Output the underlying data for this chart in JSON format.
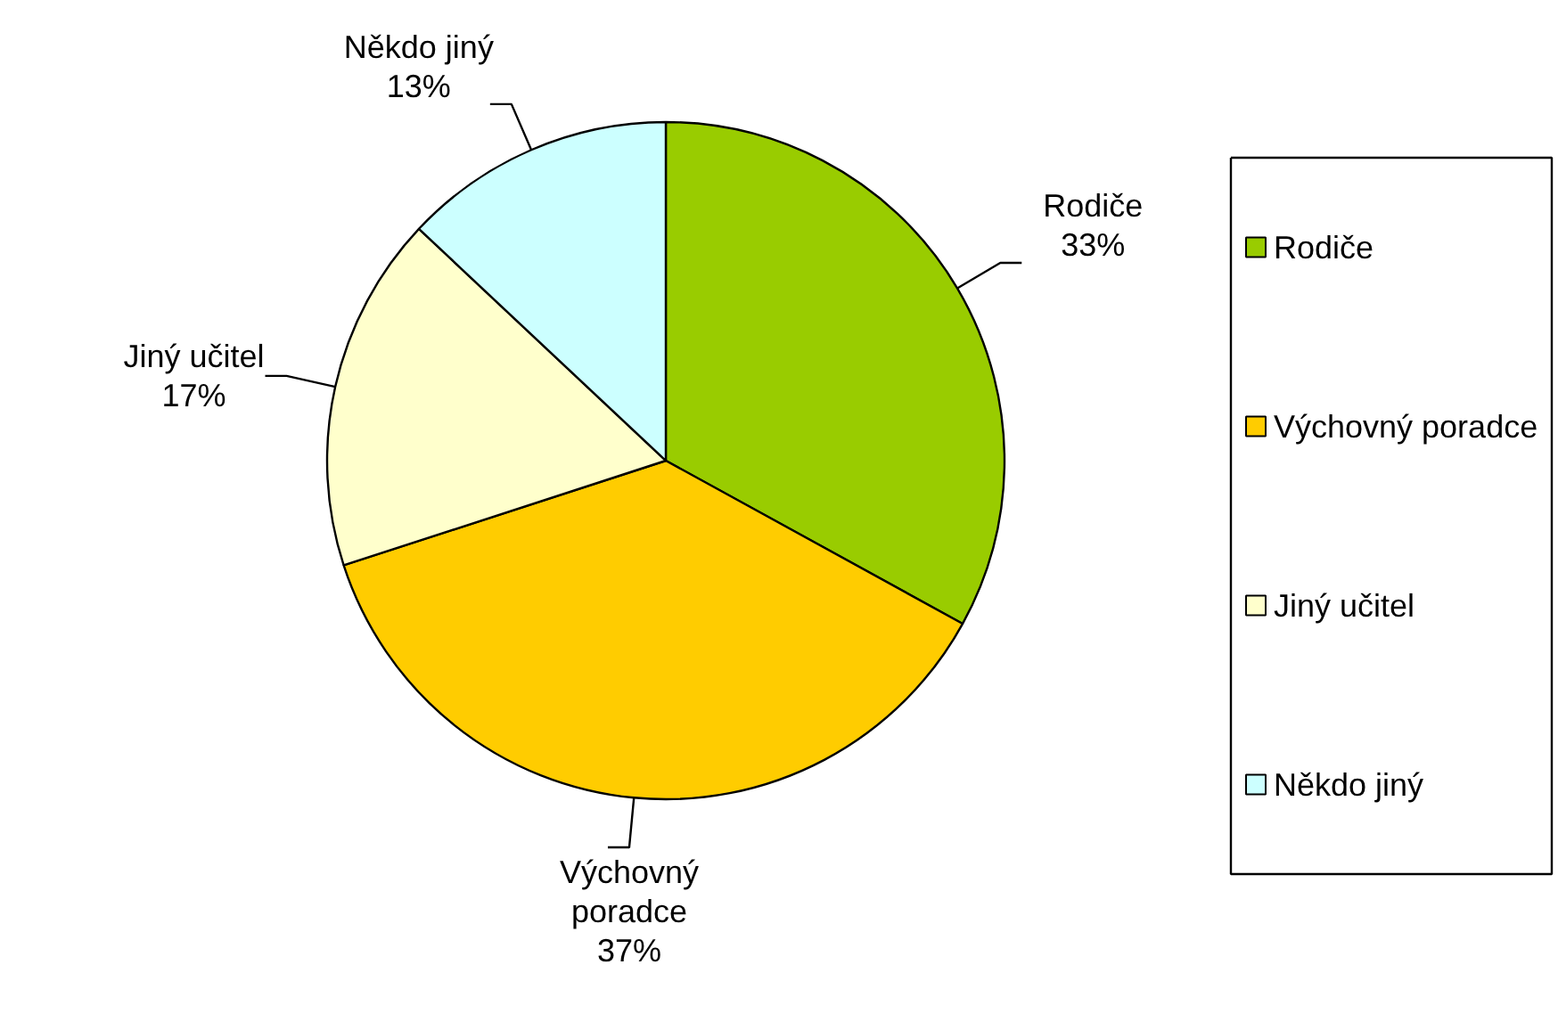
{
  "chart_data": {
    "type": "pie",
    "categories": [
      "Rodiče",
      "Výchovný poradce",
      "Jiný učitel",
      "Někdo jiný"
    ],
    "values": [
      33,
      37,
      17,
      13
    ],
    "colors": [
      "#99cc00",
      "#ffcc00",
      "#ffffcc",
      "#ccffff"
    ],
    "value_labels": [
      "33%",
      "37%",
      "17%",
      "13%"
    ],
    "legend": "right"
  }
}
